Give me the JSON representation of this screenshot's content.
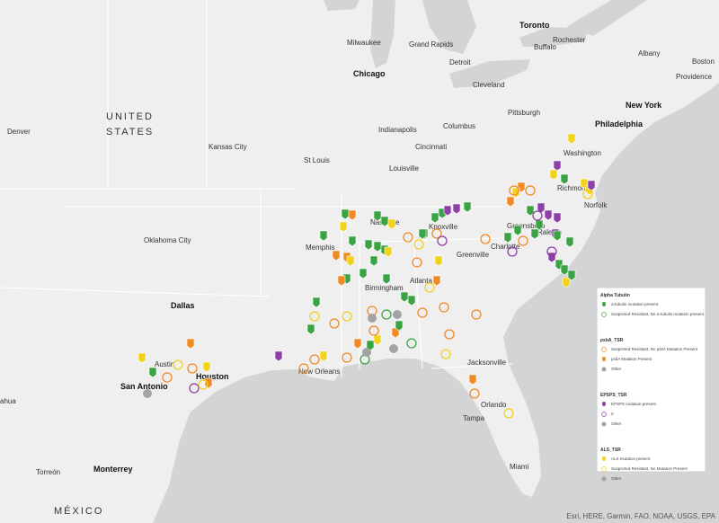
{
  "countries": [
    "UNITED",
    "STATES",
    "MÉXICO"
  ],
  "cities": [
    "Toronto",
    "Milwaukee",
    "Grand Rapids",
    "Rochester",
    "Buffalo",
    "Detroit",
    "Chicago",
    "Albany",
    "Boston",
    "Providence",
    "Cleveland",
    "New York",
    "Philadelphia",
    "Pittsburgh",
    "Columbus",
    "Indianapolis",
    "Cincinnati",
    "Denver",
    "Kansas City",
    "St Louis",
    "Louisville",
    "Washington",
    "Richmond",
    "Norfolk",
    "Nashville",
    "Knoxville",
    "Greensboro",
    "Raleigh",
    "Memphis",
    "Charlotte",
    "Oklahoma City",
    "Greenville",
    "Birmingham",
    "Atlanta",
    "Dallas",
    "Austin",
    "Houston",
    "San Antonio",
    "New Orleans",
    "Jacksonville",
    "Orlando",
    "Tampa",
    "Miami",
    "Monterrey",
    "Torreón",
    "ahua"
  ],
  "legend": [
    {
      "title": "Alpha Tubulin",
      "items": [
        "α-tubulin mutation present",
        "Suspected Resistant, No α-tubulin mutation present"
      ]
    },
    {
      "title": "psbA_TSR",
      "items": [
        "Suspected Resistant, No psbA Mutation Present",
        "psbA Mutation Present",
        "Other"
      ]
    },
    {
      "title": "EPSPS_TSR",
      "items": [
        "EPSPS mutation present",
        "0",
        "Other"
      ]
    },
    {
      "title": "ALS_TSR",
      "items": [
        "ALS mutation present",
        "Suspected Resistant, No Mutation Present",
        "Other"
      ]
    }
  ],
  "attribution": "Esri, HERE, Garmin, FAO, NOAA, USGS, EPA"
}
